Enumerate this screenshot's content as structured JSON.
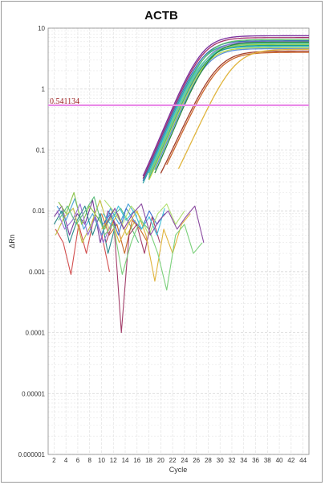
{
  "chart_data": {
    "type": "line",
    "title": "ACTB",
    "xlabel": "Cycle",
    "ylabel": "ΔRn",
    "yscale": "log",
    "xlim": [
      1,
      45
    ],
    "ylim": [
      1e-06,
      10
    ],
    "x_ticks": [
      2,
      4,
      6,
      8,
      10,
      12,
      14,
      16,
      18,
      20,
      22,
      24,
      26,
      28,
      30,
      32,
      34,
      36,
      38,
      40,
      42,
      44
    ],
    "y_ticks": [
      {
        "value": 10,
        "label": "10"
      },
      {
        "value": 1,
        "label": "1"
      },
      {
        "value": 0.1,
        "label": "0.1"
      },
      {
        "value": 0.01,
        "label": "0.01"
      },
      {
        "value": 0.001,
        "label": "0.001"
      },
      {
        "value": 0.0001,
        "label": "0.0001"
      },
      {
        "value": 1e-05,
        "label": "0.00001"
      },
      {
        "value": 1e-06,
        "label": "0.000001"
      }
    ],
    "grid": true,
    "threshold": {
      "value": 0.541134,
      "label": "0.541134",
      "color": "#e98be8"
    },
    "amplification_curves": [
      {
        "color": "#7b2f9e",
        "ct": 22.2,
        "plateau": 7.5,
        "k": 0.55,
        "start": 17
      },
      {
        "color": "#a0306a",
        "ct": 22.4,
        "plateau": 7.0,
        "k": 0.55,
        "start": 17
      },
      {
        "color": "#3d6fb6",
        "ct": 22.6,
        "plateau": 6.2,
        "k": 0.55,
        "start": 17
      },
      {
        "color": "#2ea6a6",
        "ct": 22.8,
        "plateau": 5.8,
        "k": 0.55,
        "start": 17
      },
      {
        "color": "#58c26a",
        "ct": 23.0,
        "plateau": 6.5,
        "k": 0.55,
        "start": 18
      },
      {
        "color": "#9ad14b",
        "ct": 23.2,
        "plateau": 5.4,
        "k": 0.55,
        "start": 18
      },
      {
        "color": "#40c0d8",
        "ct": 23.0,
        "plateau": 5.0,
        "k": 0.55,
        "start": 18
      },
      {
        "color": "#8a6fd1",
        "ct": 23.4,
        "plateau": 6.0,
        "k": 0.55,
        "start": 18
      },
      {
        "color": "#1f9d8c",
        "ct": 23.5,
        "plateau": 5.2,
        "k": 0.55,
        "start": 18
      },
      {
        "color": "#b8d84a",
        "ct": 23.6,
        "plateau": 4.8,
        "k": 0.55,
        "start": 18
      },
      {
        "color": "#6fcf97",
        "ct": 23.3,
        "plateau": 5.6,
        "k": 0.55,
        "start": 18
      },
      {
        "color": "#5b8fd9",
        "ct": 23.8,
        "plateau": 4.6,
        "k": 0.55,
        "start": 19
      },
      {
        "color": "#2b8a3e",
        "ct": 24.0,
        "plateau": 5.9,
        "k": 0.55,
        "start": 19
      },
      {
        "color": "#a33f2a",
        "ct": 25.6,
        "plateau": 4.2,
        "k": 0.5,
        "start": 20
      },
      {
        "color": "#c9642a",
        "ct": 25.9,
        "plateau": 4.0,
        "k": 0.5,
        "start": 21
      },
      {
        "color": "#e0b43c",
        "ct": 28.2,
        "plateau": 4.5,
        "k": 0.5,
        "start": 23
      }
    ],
    "noise_traces": [
      {
        "color": "#7a3d9a",
        "y": [
          0.008,
          0.012,
          0.004,
          0.009,
          0.006,
          0.015,
          0.003,
          0.01,
          0.006
        ]
      },
      {
        "color": "#d24e4e",
        "y": [
          0.005,
          0.003,
          0.0009,
          0.006,
          0.002,
          0.008,
          0.004,
          0.001
        ]
      },
      {
        "color": "#4aa3d9",
        "y": [
          0.012,
          0.007,
          0.016,
          0.005,
          0.009,
          0.004,
          0.011,
          0.006,
          0.013,
          0.008
        ]
      },
      {
        "color": "#8bc34a",
        "y": [
          0.014,
          0.009,
          0.02,
          0.006,
          0.012,
          0.008,
          0.005,
          0.01
        ]
      },
      {
        "color": "#2a8a8a",
        "y": [
          0.006,
          0.01,
          0.003,
          0.007,
          0.012,
          0.004,
          0.009,
          0.002,
          0.006
        ]
      },
      {
        "color": "#c0c040",
        "y": [
          0.004,
          0.008,
          0.011,
          0.003,
          0.006,
          0.015,
          0.005,
          0.009,
          0.004,
          0.007
        ]
      },
      {
        "color": "#9a6fd6",
        "y": [
          0.01,
          0.005,
          0.007,
          0.013,
          0.004,
          0.008,
          0.003,
          0.006
        ]
      },
      {
        "color": "#5fbf7f",
        "y": [
          0.007,
          0.012,
          0.006,
          0.01,
          0.017,
          0.005,
          0.008,
          0.011,
          0.006,
          0.003
        ]
      },
      {
        "color": "#c86a2a",
        "y": [
          0.009,
          0.004,
          0.006,
          0.002,
          0.007,
          0.005,
          0.003
        ]
      },
      {
        "color": "#3f6fd1",
        "y": [
          0.006,
          0.009,
          0.004,
          0.011,
          0.007,
          0.005,
          0.01,
          0.006,
          0.009
        ]
      },
      {
        "color": "#b0e070",
        "y": [
          0.015,
          0.01,
          0.006,
          0.012,
          0.008,
          0.004,
          0.009,
          0.013,
          0.006,
          0.01
        ]
      },
      {
        "color": "#a33f6a",
        "y": [
          0.003,
          0.007,
          0.0001,
          0.004,
          0.006,
          0.002,
          0.008,
          0.003
        ]
      },
      {
        "color": "#e0b43c",
        "y": [
          0.005,
          0.008,
          0.003,
          0.006,
          0.01,
          0.004,
          0.0007,
          0.005,
          0.002,
          0.006,
          0.009
        ]
      },
      {
        "color": "#40c0d8",
        "y": [
          0.009,
          0.006,
          0.012,
          0.007,
          0.01,
          0.005,
          0.008,
          0.004,
          0.011
        ]
      },
      {
        "color": "#7cd17c",
        "y": [
          0.004,
          0.006,
          0.0009,
          0.003,
          0.007,
          0.005,
          0.002,
          0.0005,
          0.004,
          0.006,
          0.002,
          0.003
        ]
      },
      {
        "color": "#8a4aa0",
        "y": [
          0.006,
          0.011,
          0.005,
          0.009,
          0.013,
          0.004,
          0.007,
          0.01,
          0.005,
          0.008,
          0.012,
          0.003
        ]
      }
    ]
  }
}
